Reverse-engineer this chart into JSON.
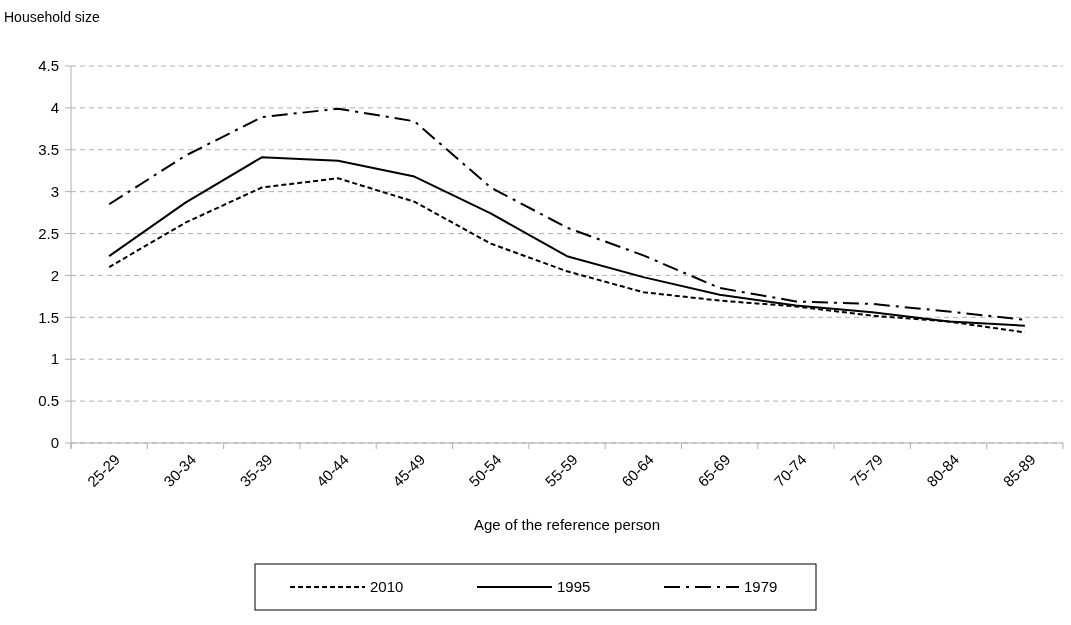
{
  "chart_data": {
    "type": "line",
    "ylabel": "Household size",
    "xlabel": "Age of the reference person",
    "categories": [
      "25-29",
      "30-34",
      "35-39",
      "40-44",
      "45-49",
      "50-54",
      "55-59",
      "60-64",
      "65-69",
      "70-74",
      "75-79",
      "80-84",
      "85-89"
    ],
    "series": [
      {
        "name": "2010",
        "color": "#000000",
        "line_style": "dashed",
        "values": [
          2.1,
          2.63,
          3.05,
          3.16,
          2.88,
          2.38,
          2.05,
          1.8,
          1.7,
          1.63,
          1.52,
          1.45,
          1.32
        ]
      },
      {
        "name": "1995",
        "color": "#000000",
        "line_style": "solid",
        "values": [
          2.23,
          2.87,
          3.41,
          3.37,
          3.18,
          2.74,
          2.23,
          1.98,
          1.77,
          1.64,
          1.56,
          1.45,
          1.4
        ]
      },
      {
        "name": "1979",
        "color": "#000000",
        "line_style": "dashdot",
        "values": [
          2.85,
          3.43,
          3.89,
          3.99,
          3.84,
          3.05,
          2.57,
          2.24,
          1.85,
          1.69,
          1.66,
          1.57,
          1.47
        ]
      }
    ],
    "ylim": [
      0,
      4.5
    ],
    "yticks": [
      0,
      {
        "value": 0.5,
        "label": "0.5"
      },
      1,
      {
        "value": 1.5,
        "label": "1.5"
      },
      2,
      {
        "value": 2.5,
        "label": "2.5"
      },
      3,
      {
        "value": 3.5,
        "label": "3.5"
      },
      4,
      {
        "value": 4.5,
        "label": "4.5"
      }
    ],
    "grid": "y",
    "legend": "bottom",
    "marker": "none"
  }
}
